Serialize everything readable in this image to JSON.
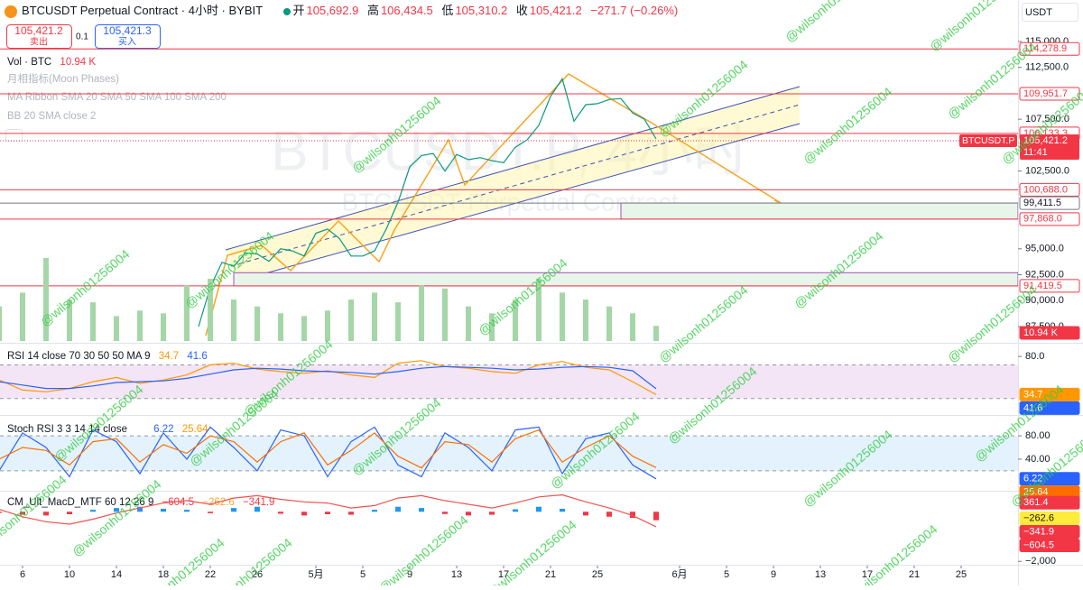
{
  "header": {
    "title": "BTCUSDT Perpetual Contract · 4小时 · BYBIT",
    "ohlc": [
      {
        "key": "开",
        "value": "105,692.9"
      },
      {
        "key": "高",
        "value": "106,434.5"
      },
      {
        "key": "低",
        "value": "105,310.2"
      },
      {
        "key": "收",
        "value": "105,421.2"
      }
    ],
    "change": "−271.7 (−0.26%)"
  },
  "trade": {
    "sell_price": "105,421.2",
    "sell": "卖出",
    "quantity": "0.1",
    "buy_price": "105,421.3",
    "buy": "买入"
  },
  "currency": "USDT",
  "overlays": {
    "moon": "月相指标(Moon Phases)",
    "ma": "MA Ribbon SMA 20 SMA 50 SMA 100 SMA 200",
    "bb": "BB 20 SMA close 2"
  },
  "watermark": {
    "symbol": "BTCUSDT.P, 4小时",
    "name": "BTCUSDT Perpetual Contract",
    "user": "@wilsonh01256004"
  },
  "chart_data": [
    {
      "type": "line",
      "color": "#089981",
      "x": [
        "04-21",
        "04-22",
        "04-23",
        "04-24",
        "04-25",
        "04-26",
        "04-27",
        "04-28",
        "04-29",
        "04-30",
        "05-01",
        "05-02",
        "05-03",
        "05-04",
        "05-05",
        "05-06",
        "05-07",
        "05-08",
        "05-09",
        "05-10",
        "05-11",
        "05-12",
        "05-13",
        "05-14",
        "05-15",
        "05-16",
        "05-17",
        "05-18",
        "05-19",
        "05-20",
        "05-21",
        "05-22",
        "05-23",
        "05-24",
        "05-25",
        "05-26",
        "05-27",
        "05-28",
        "05-29",
        "05-30"
      ],
      "values": [
        87500,
        91300,
        93700,
        93300,
        94600,
        94500,
        93800,
        95000,
        94800,
        94300,
        96500,
        96900,
        96000,
        94300,
        94300,
        94800,
        96900,
        99500,
        102900,
        104000,
        104200,
        102500,
        104100,
        103600,
        103800,
        103500,
        103300,
        104800,
        105500,
        106900,
        109700,
        111400,
        107300,
        108900,
        109000,
        109400,
        109500,
        108100,
        107500,
        105600
      ],
      "ylim": [
        85930,
        119000
      ],
      "yticks": [
        {
          "value": 115000,
          "label": "115,000.0"
        },
        {
          "value": 112500,
          "label": "112,500.0"
        },
        {
          "value": 107500,
          "label": "107,500.0"
        },
        {
          "value": 102500,
          "label": "102,500.0"
        },
        {
          "value": 95000,
          "label": "95,000.0"
        },
        {
          "value": 92500,
          "label": "92,500.0"
        },
        {
          "value": 90000,
          "label": "90,000.0"
        },
        {
          "value": 87500,
          "label": "87,500.0"
        }
      ],
      "xticks": [
        {
          "value": "04-06",
          "label": "6"
        },
        {
          "value": "04-10",
          "label": "10"
        },
        {
          "value": "04-14",
          "label": "14"
        },
        {
          "value": "04-18",
          "label": "18"
        },
        {
          "value": "04-22",
          "label": "22"
        },
        {
          "value": "04-26",
          "label": "26"
        },
        {
          "value": "05-01",
          "label": "5月"
        },
        {
          "value": "05-05",
          "label": "5"
        },
        {
          "value": "05-09",
          "label": "9"
        },
        {
          "value": "05-13",
          "label": "13"
        },
        {
          "value": "05-17",
          "label": "17"
        },
        {
          "value": "05-21",
          "label": "21"
        },
        {
          "value": "05-25",
          "label": "25"
        },
        {
          "value": "06-01",
          "label": "6月"
        },
        {
          "value": "06-05",
          "label": "5"
        },
        {
          "value": "06-09",
          "label": "9"
        },
        {
          "value": "06-13",
          "label": "13"
        },
        {
          "value": "06-17",
          "label": "17"
        },
        {
          "value": "06-21",
          "label": "21"
        },
        {
          "value": "06-25",
          "label": "25"
        }
      ],
      "grid": false,
      "levels": [
        {
          "value": 114278.9,
          "label": "114,278.9",
          "color": "#f23645"
        },
        {
          "value": 109951.7,
          "label": "109,951.7",
          "color": "#f23645"
        },
        {
          "value": 106133.3,
          "label": "106,133.3",
          "color": "#f23645"
        },
        {
          "value": 100688.0,
          "label": "100,688.0",
          "color": "#f23645"
        },
        {
          "value": 99411.5,
          "label": "99,411.5",
          "color": "#787b86"
        },
        {
          "value": 97868.0,
          "label": "97,868.0",
          "color": "#f23645"
        },
        {
          "value": 91419.5,
          "label": "91,419.5",
          "color": "#f23645"
        }
      ],
      "zones": [
        {
          "from": "05-27",
          "top": 99411.5,
          "bottom": 97868.0,
          "color": "#e8f5e9"
        },
        {
          "from": "04-24",
          "top": 92700,
          "bottom": 91419.5,
          "color": "#e8f5e9"
        }
      ],
      "last_price": {
        "value": 105421.2,
        "label": "105,421.2",
        "symbol": "BTCUSDT.P",
        "countdown": "11:41",
        "color": "#f23645"
      }
    },
    {
      "type": "bar",
      "title": "Vol · BTC",
      "color": "#a5d6a7",
      "x": [
        "04-04",
        "04-06",
        "04-08",
        "04-10",
        "04-12",
        "04-14",
        "04-16",
        "04-18",
        "04-20",
        "04-22",
        "04-24",
        "04-26",
        "04-28",
        "04-30",
        "05-02",
        "05-04",
        "05-06",
        "05-08",
        "05-10",
        "05-12",
        "05-14",
        "05-16",
        "05-18",
        "05-20",
        "05-22",
        "05-24",
        "05-26",
        "05-28",
        "05-30"
      ],
      "values": [
        25,
        35,
        60,
        30,
        28,
        18,
        22,
        20,
        40,
        45,
        30,
        25,
        20,
        18,
        22,
        30,
        35,
        28,
        40,
        38,
        25,
        20,
        30,
        45,
        35,
        30,
        25,
        20,
        10.94
      ],
      "last_label": "10.94 K",
      "ylim": [
        0,
        90
      ]
    },
    {
      "type": "line",
      "title": "RSI 14 close 70 30 50 50 MA 9",
      "x": [
        "04-04",
        "04-06",
        "04-08",
        "04-10",
        "04-12",
        "04-14",
        "04-16",
        "04-18",
        "04-20",
        "04-22",
        "04-24",
        "04-26",
        "04-28",
        "04-30",
        "05-02",
        "05-04",
        "05-06",
        "05-08",
        "05-10",
        "05-12",
        "05-14",
        "05-16",
        "05-18",
        "05-20",
        "05-22",
        "05-24",
        "05-26",
        "05-28",
        "05-30"
      ],
      "series": [
        {
          "color": "#ff9800",
          "values": [
            52,
            40,
            38,
            42,
            50,
            55,
            48,
            52,
            58,
            70,
            72,
            65,
            62,
            60,
            63,
            58,
            55,
            72,
            75,
            68,
            66,
            62,
            60,
            70,
            74,
            67,
            64,
            50,
            34.7
          ]
        },
        {
          "color": "#2962ff",
          "values": [
            50,
            46,
            42,
            42,
            45,
            49,
            50,
            51,
            54,
            59,
            64,
            66,
            65,
            63,
            62,
            61,
            59,
            62,
            66,
            68,
            67,
            66,
            64,
            65,
            67,
            68,
            67,
            63,
            41.6
          ]
        }
      ],
      "ylim": [
        19,
        93
      ],
      "yticks": [
        {
          "value": 80,
          "label": "80.0"
        }
      ],
      "bands": [
        30,
        70
      ],
      "band_color": "#f3e5f5"
    },
    {
      "type": "line",
      "title": "Stoch RSI 3 3 14 14 close",
      "x": [
        "04-04",
        "04-06",
        "04-08",
        "04-10",
        "04-12",
        "04-14",
        "04-16",
        "04-18",
        "04-20",
        "04-22",
        "04-24",
        "04-26",
        "04-28",
        "04-30",
        "05-02",
        "05-04",
        "05-06",
        "05-08",
        "05-10",
        "05-12",
        "05-14",
        "05-16",
        "05-18",
        "05-20",
        "05-22",
        "05-24",
        "05-26",
        "05-28",
        "05-30"
      ],
      "series": [
        {
          "color": "#2962ff",
          "values": [
            20,
            85,
            60,
            10,
            90,
            70,
            15,
            85,
            40,
            95,
            60,
            20,
            90,
            80,
            10,
            70,
            95,
            30,
            10,
            85,
            60,
            20,
            90,
            95,
            15,
            75,
            85,
            30,
            6.22
          ]
        },
        {
          "color": "#ff6d00",
          "values": [
            40,
            60,
            55,
            30,
            70,
            75,
            35,
            65,
            50,
            80,
            70,
            35,
            70,
            85,
            30,
            55,
            85,
            45,
            25,
            70,
            65,
            35,
            75,
            90,
            35,
            60,
            80,
            45,
            25.64
          ]
        }
      ],
      "ylim": [
        -8,
        108
      ],
      "yticks": [
        {
          "value": 80,
          "label": "80.00"
        },
        {
          "value": 40,
          "label": "40.00"
        }
      ],
      "bands": [
        20,
        80
      ],
      "band_color": "#e3f2fd"
    },
    {
      "type": "combo",
      "title": "CM_Ult_MacD_MTF 60 12 26 9",
      "x": [
        "04-04",
        "04-06",
        "04-08",
        "04-10",
        "04-12",
        "04-14",
        "04-16",
        "04-18",
        "04-20",
        "04-22",
        "04-24",
        "04-26",
        "04-28",
        "04-30",
        "05-02",
        "05-04",
        "05-06",
        "05-08",
        "05-10",
        "05-12",
        "05-14",
        "05-16",
        "05-18",
        "05-20",
        "05-22",
        "05-24",
        "05-26",
        "05-28",
        "05-30"
      ],
      "series": [
        {
          "color": "#ef5350",
          "values": [
            100,
            -200,
            -400,
            -500,
            -300,
            -50,
            150,
            350,
            450,
            300,
            550,
            650,
            500,
            400,
            350,
            150,
            250,
            550,
            650,
            450,
            300,
            150,
            350,
            600,
            680,
            400,
            150,
            -150,
            -604.5
          ]
        }
      ],
      "histogram": {
        "up_color": "#2196f3",
        "down_color": "#f23645",
        "values": [
          -50,
          -120,
          -150,
          -100,
          80,
          150,
          200,
          120,
          80,
          -60,
          150,
          200,
          -80,
          -150,
          -100,
          -120,
          80,
          200,
          150,
          -90,
          -150,
          -120,
          100,
          200,
          120,
          -150,
          -200,
          -250,
          -341.9
        ]
      },
      "ylim": [
        -2100,
        700
      ],
      "yticks": [
        {
          "value": -2000,
          "label": "−2,000"
        }
      ],
      "labels": [
        {
          "value": 361.4,
          "color": "#f23645"
        },
        {
          "value": -262.6,
          "label": "−262.6",
          "color": "#ffeb3b"
        },
        {
          "value": -341.9,
          "label": "−341.9",
          "color": "#f23645"
        },
        {
          "value": -604.5,
          "label": "−604.5",
          "color": "#f23645"
        }
      ]
    }
  ]
}
